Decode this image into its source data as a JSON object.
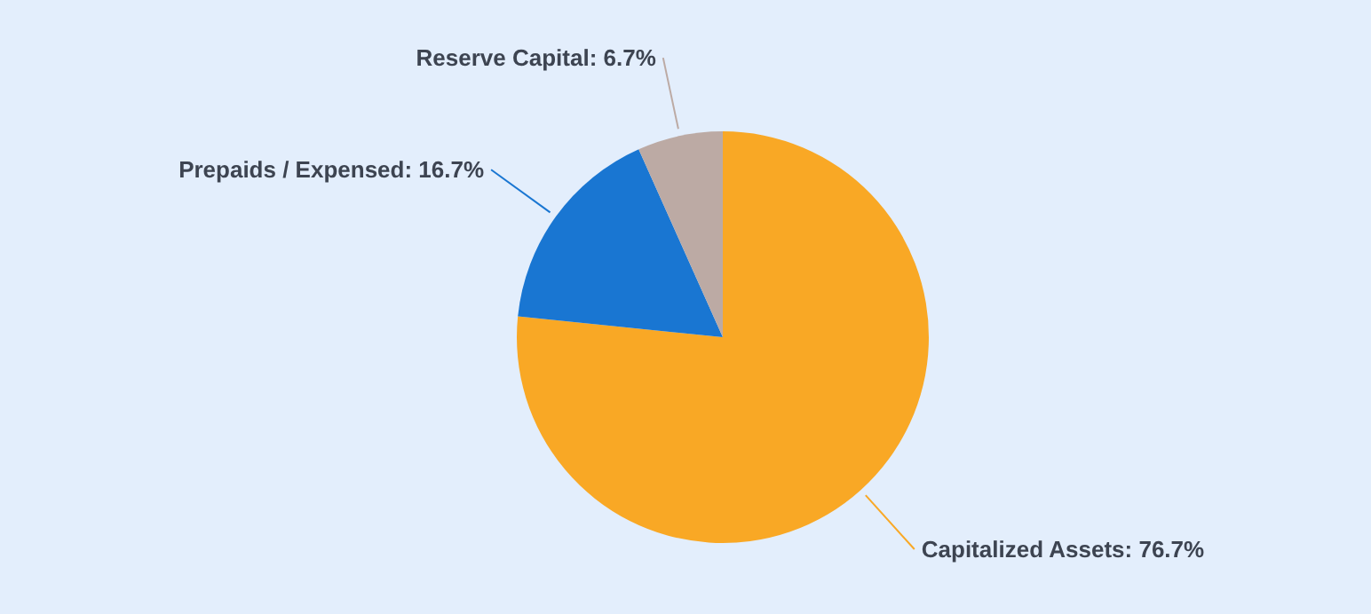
{
  "chart_data": {
    "type": "pie",
    "categories": [
      "Capitalized Assets",
      "Prepaids / Expensed",
      "Reserve Capital"
    ],
    "values": [
      76.7,
      16.7,
      6.7
    ],
    "colors": [
      "#f9a825",
      "#1976d2",
      "#bcaaa4"
    ],
    "value_labels": [
      "76.7%",
      "16.7%",
      "6.7%"
    ],
    "legend": false
  }
}
